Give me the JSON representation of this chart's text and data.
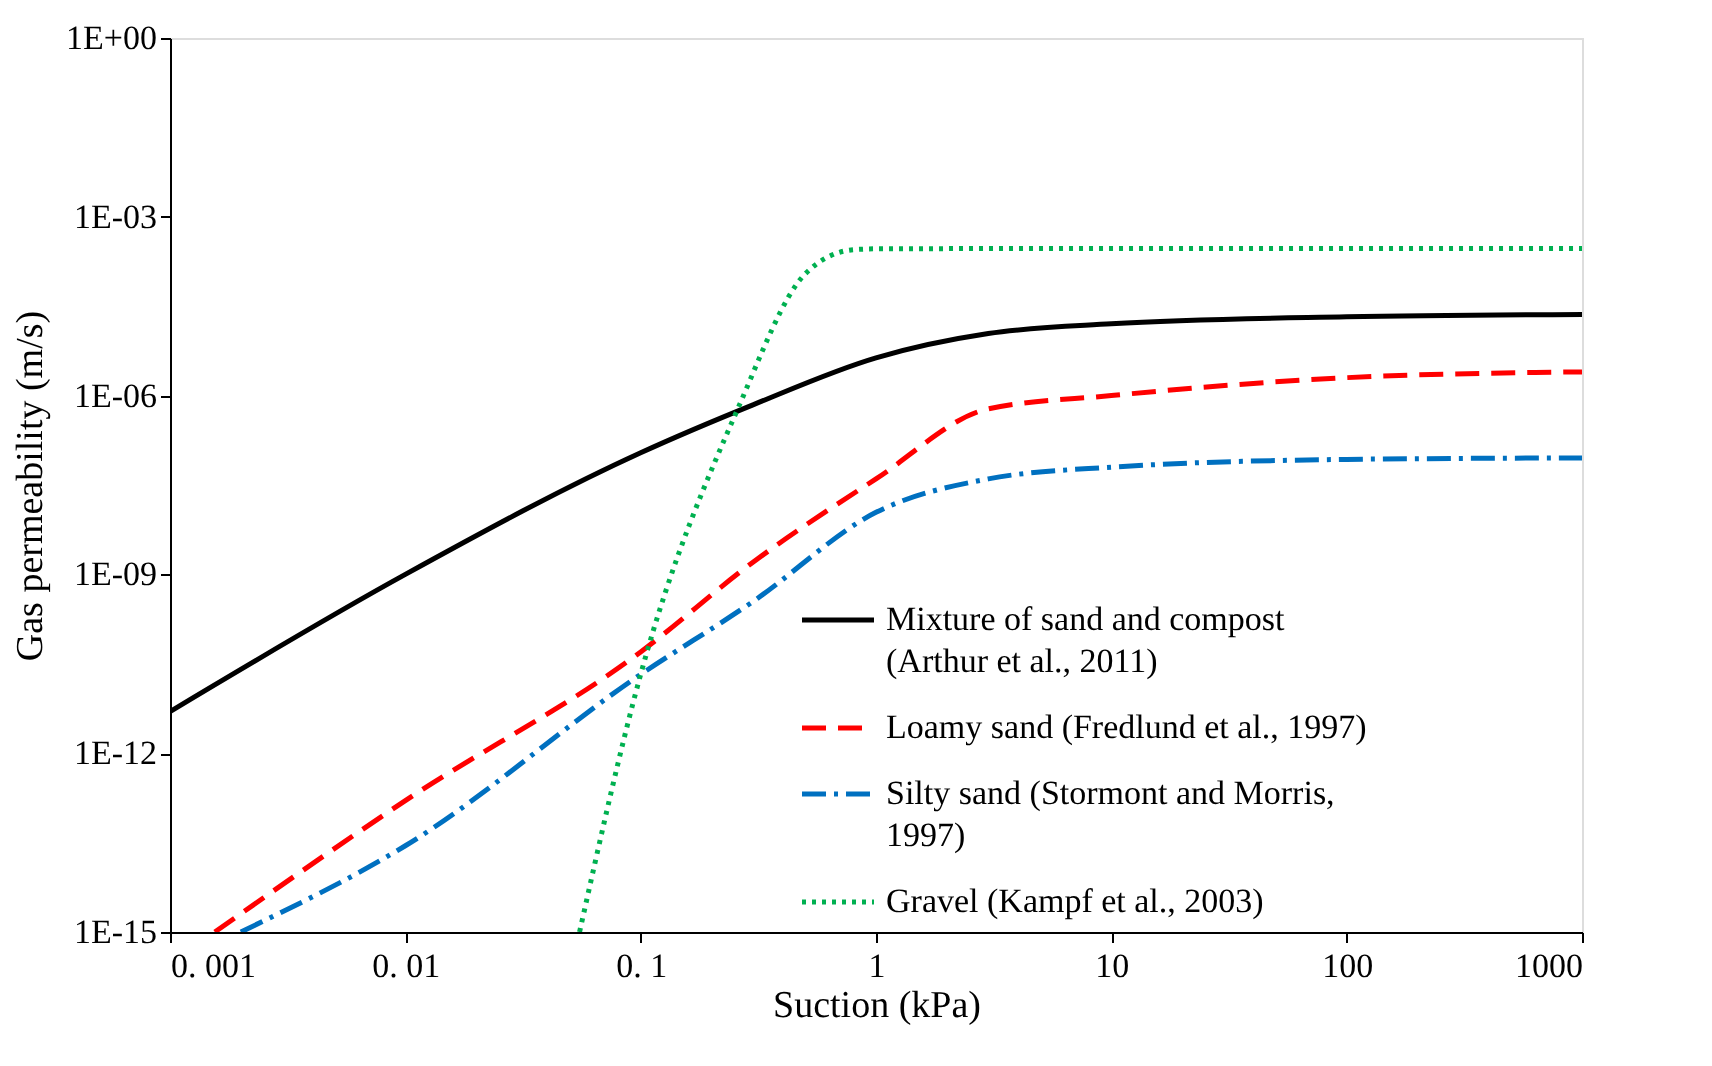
{
  "chart_data": {
    "type": "line",
    "xlabel": "Suction (kPa)",
    "ylabel": "Gas permeability  (m/s)",
    "log": "xy",
    "grid": false,
    "legend": "bottom right",
    "marker": "none",
    "xlim": [
      0.001,
      1000
    ],
    "ylim": [
      1e-15,
      1
    ],
    "xticks": [
      {
        "value": 0.001,
        "label": "0. 001"
      },
      {
        "value": 0.01,
        "label": "0. 01"
      },
      {
        "value": 0.1,
        "label": "0. 1"
      },
      1,
      10,
      100,
      1000
    ],
    "yticks": [
      {
        "value": 1e-15,
        "label": "1E-15"
      },
      {
        "value": 1e-12,
        "label": "1E-12"
      },
      {
        "value": 1e-09,
        "label": "1E-09"
      },
      {
        "value": 1e-06,
        "label": "1E-06"
      },
      {
        "value": 0.001,
        "label": "1E-03"
      },
      {
        "value": 1,
        "label": "1E+00"
      }
    ],
    "series": [
      {
        "name": "Mixture of sand and compost (Arthur et al., 2011)",
        "color": "#000000",
        "line_style": "solid",
        "x": [
          0.001,
          0.01,
          0.1,
          0.3,
          1,
          3,
          10,
          100,
          1000
        ],
        "values": [
          5e-12,
          1e-09,
          1.1e-07,
          7e-07,
          4.3e-06,
          1.1e-05,
          1.6e-05,
          2.1e-05,
          2.3e-05
        ]
      },
      {
        "name": "Loamy sand (Fredlund et al., 1997)",
        "color": "#ff0000",
        "line_style": "dashed",
        "x": [
          0.00155,
          0.01,
          0.1,
          0.3,
          1,
          3,
          10,
          100,
          1000
        ],
        "values": [
          1e-15,
          1.6e-13,
          5e-11,
          1.6e-09,
          4e-08,
          6e-07,
          1e-06,
          2e-06,
          2.5e-06
        ]
      },
      {
        "name": "Silty sand (Stormont and Morris, 1997)",
        "color": "#0070c0",
        "line_style": "dashdot",
        "x": [
          0.002,
          0.01,
          0.1,
          0.3,
          1,
          3,
          10,
          100,
          1000
        ],
        "values": [
          1e-15,
          2.8e-14,
          2.1e-11,
          3.5e-10,
          1.1e-08,
          4e-08,
          6.3e-08,
          8.5e-08,
          9e-08
        ]
      },
      {
        "name": "Gravel (Kampf et al., 2003)",
        "color": "#00b050",
        "line_style": "dotted",
        "x": [
          0.055,
          0.1,
          0.26,
          0.5,
          0.8,
          1,
          10,
          1000
        ],
        "values": [
          1e-15,
          2.1e-11,
          6.3e-07,
          0.00011,
          0.00028,
          0.00029,
          0.000295,
          0.000295
        ]
      }
    ]
  }
}
